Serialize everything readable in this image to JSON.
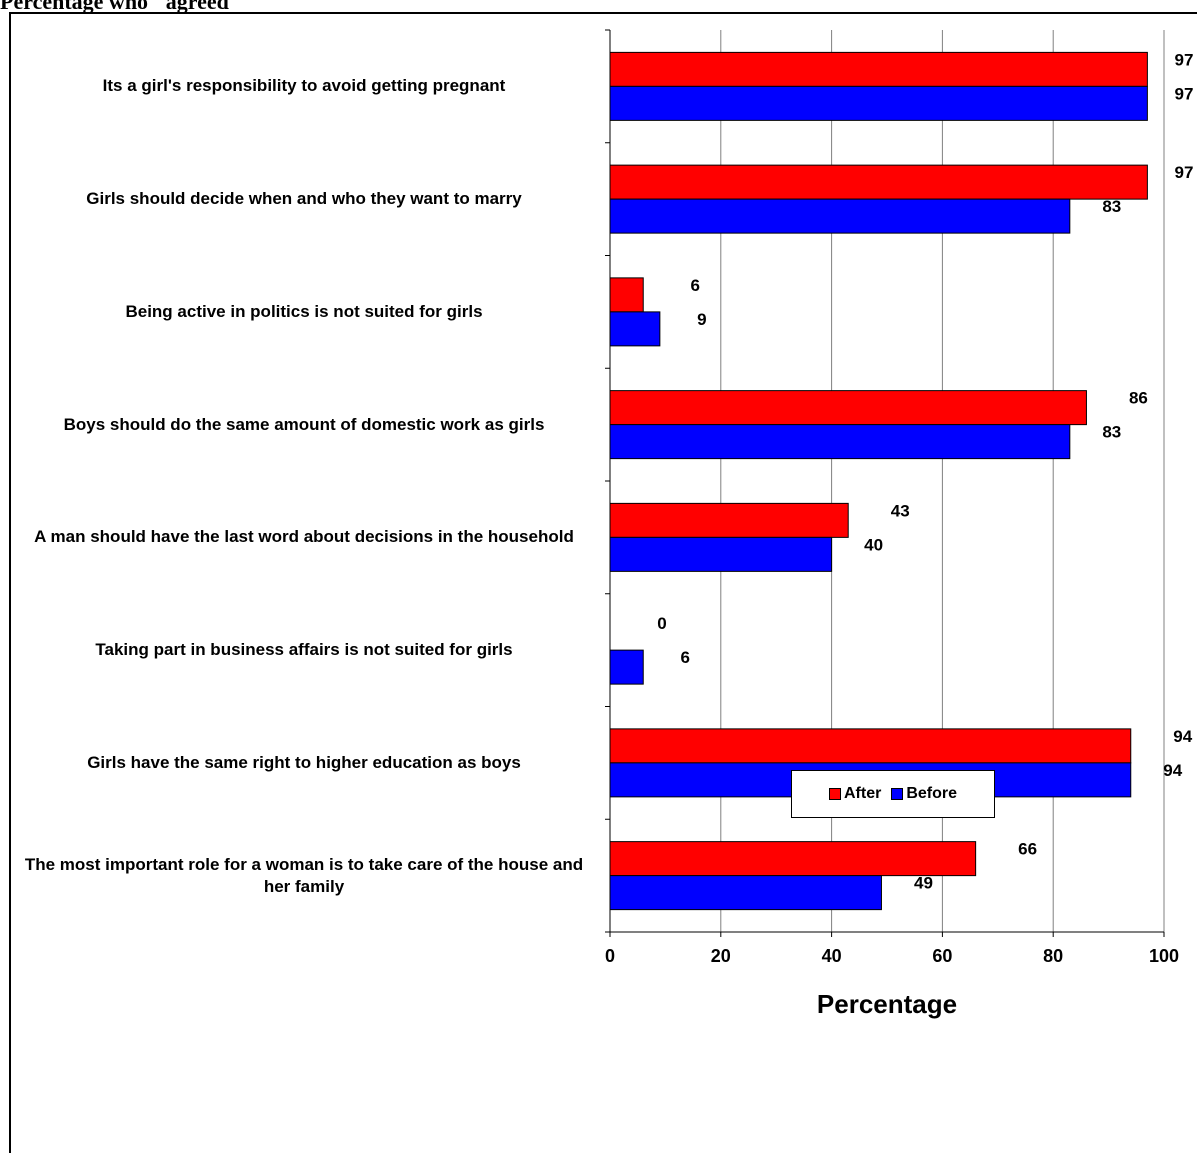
{
  "page": {
    "title": "Percentage who \"agreed\""
  },
  "colors": {
    "after": "#ff0000",
    "before": "#0000ff",
    "grid": "#808080",
    "axis": "#000000"
  },
  "chart_data": {
    "type": "bar",
    "orientation": "horizontal",
    "categories": [
      "Its a girl's responsibility to avoid getting pregnant",
      "Girls should decide when and who they want to marry",
      "Being active in politics is not suited for girls",
      "Boys should do the same amount of domestic work as girls",
      "A man should have the last word about decisions in the household",
      "Taking part in business affairs is not suited for girls",
      "Girls have the same right to higher education as boys",
      "The most important role for a woman is to take care of the house and her family"
    ],
    "series": [
      {
        "name": "After",
        "values": [
          97,
          97,
          6,
          86,
          43,
          0,
          94,
          66
        ]
      },
      {
        "name": "Before",
        "values": [
          97,
          83,
          9,
          83,
          40,
          6,
          94,
          49
        ]
      }
    ],
    "xlabel": "Percentage",
    "xlim": [
      0,
      100
    ],
    "xticks": [
      0,
      20,
      40,
      60,
      80,
      100
    ],
    "grid": true,
    "legend_position": "bottom"
  }
}
